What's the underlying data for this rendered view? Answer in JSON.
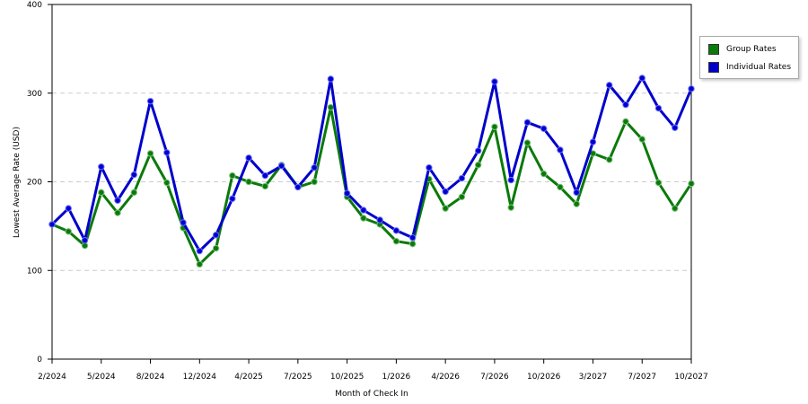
{
  "chart_data": {
    "type": "line",
    "xlabel": "Month of Check In",
    "ylabel": "Lowest Average Rate (USD)",
    "ylim": [
      0,
      400
    ],
    "yticks": [
      0,
      100,
      200,
      300,
      400
    ],
    "grid": "horizontal dashed",
    "legend_position": "top-right",
    "x_ticks": [
      {
        "label": "2/2024",
        "index": 0
      },
      {
        "label": "5/2024",
        "index": 3
      },
      {
        "label": "8/2024",
        "index": 6
      },
      {
        "label": "12/2024",
        "index": 9
      },
      {
        "label": "4/2025",
        "index": 12
      },
      {
        "label": "7/2025",
        "index": 15
      },
      {
        "label": "10/2025",
        "index": 18
      },
      {
        "label": "1/2026",
        "index": 21
      },
      {
        "label": "4/2026",
        "index": 24
      },
      {
        "label": "7/2026",
        "index": 27
      },
      {
        "label": "10/2026",
        "index": 30
      },
      {
        "label": "3/2027",
        "index": 33
      },
      {
        "label": "7/2027",
        "index": 36
      },
      {
        "label": "10/2027",
        "index": 39
      }
    ],
    "point_count": 40,
    "series": [
      {
        "name": "Group Rates",
        "color": "#0a7a0a",
        "values": [
          152,
          144,
          128,
          188,
          165,
          188,
          232,
          199,
          148,
          107,
          125,
          207,
          200,
          195,
          219,
          194,
          200,
          284,
          183,
          159,
          152,
          133,
          130,
          203,
          170,
          183,
          219,
          262,
          171,
          244,
          209,
          194,
          175,
          232,
          225,
          268,
          248,
          199,
          170,
          198
        ]
      },
      {
        "name": "Individual Rates",
        "color": "#0000cc",
        "values": [
          152,
          170,
          134,
          217,
          179,
          208,
          291,
          233,
          154,
          122,
          140,
          181,
          227,
          207,
          218,
          194,
          216,
          316,
          187,
          168,
          157,
          145,
          137,
          216,
          189,
          204,
          235,
          313,
          202,
          267,
          260,
          236,
          188,
          245,
          309,
          287,
          317,
          283,
          261,
          305
        ]
      }
    ]
  }
}
